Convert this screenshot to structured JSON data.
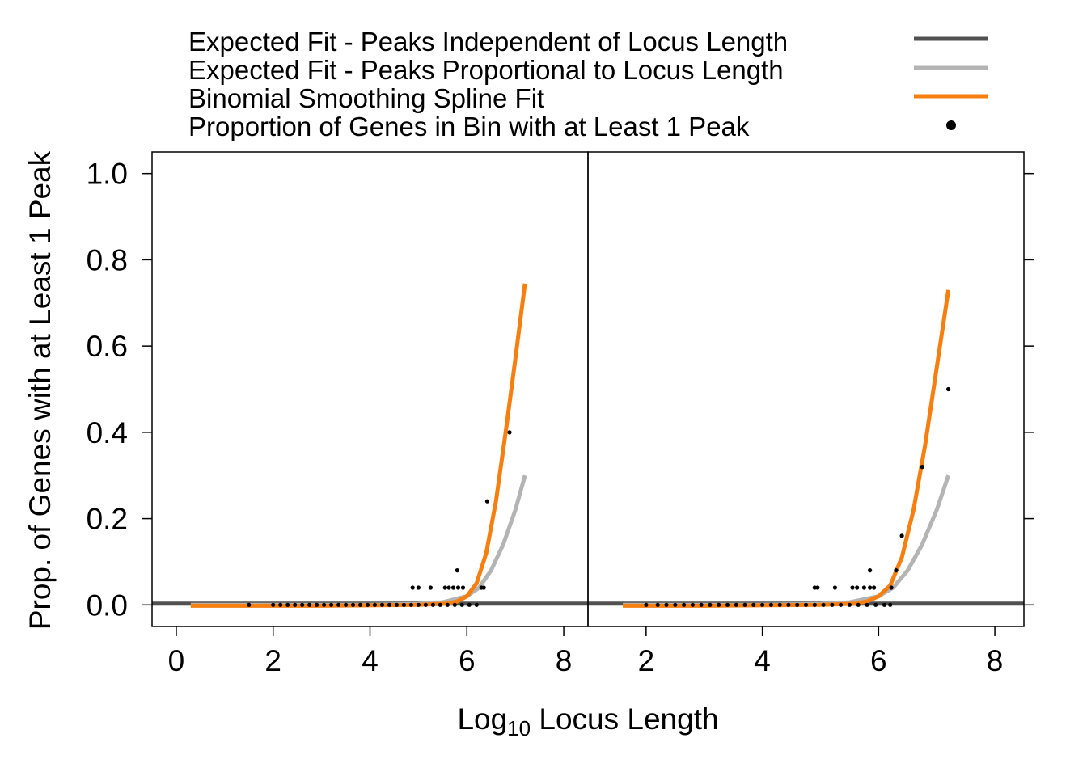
{
  "chart_data": {
    "type": "line",
    "xlabel": "Log",
    "xlabel_sub": "10",
    "xlabel_rest": " Locus Length",
    "ylabel": "Prop. of Genes with at Least 1 Peak",
    "ylim": [
      -0.05,
      1.05
    ],
    "yticks": [
      "0.0",
      "0.2",
      "0.4",
      "0.6",
      "0.8",
      "1.0"
    ],
    "legend_position": "top",
    "legend": [
      {
        "label": "Expected Fit - Peaks Independent of Locus Length",
        "color": "#505050",
        "kind": "line"
      },
      {
        "label": "Expected Fit - Peaks Proportional to Locus Length",
        "color": "#b4b4b4",
        "kind": "line"
      },
      {
        "label": "Binomial Smoothing Spline Fit",
        "color": "#f77f10",
        "kind": "line"
      },
      {
        "label": "Proportion of Genes in Bin with at Least 1 Peak",
        "color": "#000000",
        "kind": "point"
      }
    ],
    "panels": [
      {
        "xlim": [
          -0.5,
          8.5
        ],
        "xticks": [
          "0",
          "2",
          "4",
          "6",
          "8"
        ],
        "series": [
          {
            "name": "Expected Fit - Peaks Independent of Locus Length",
            "color": "#505050",
            "x": [
              -0.5,
              8.5
            ],
            "y": [
              0.003,
              0.003
            ]
          },
          {
            "name": "Expected Fit - Peaks Proportional to Locus Length",
            "color": "#b4b4b4",
            "x": [
              0.3,
              3,
              4,
              5,
              5.5,
              6,
              6.25,
              6.5,
              6.75,
              7,
              7.2
            ],
            "y": [
              0,
              0,
              0.0005,
              0.002,
              0.006,
              0.02,
              0.04,
              0.08,
              0.14,
              0.22,
              0.3
            ]
          },
          {
            "name": "Binomial Smoothing Spline Fit",
            "color": "#f77f10",
            "x": [
              0.3,
              3,
              5,
              5.6,
              5.8,
              6.0,
              6.2,
              6.4,
              6.6,
              6.8,
              7.0,
              7.2
            ],
            "y": [
              -0.002,
              -0.002,
              0,
              0.003,
              0.008,
              0.02,
              0.05,
              0.12,
              0.24,
              0.4,
              0.57,
              0.745
            ]
          }
        ],
        "points": [
          [
            1.5,
            0
          ],
          [
            2.0,
            0
          ],
          [
            2.15,
            0
          ],
          [
            2.3,
            0
          ],
          [
            2.45,
            0
          ],
          [
            2.6,
            0
          ],
          [
            2.75,
            0
          ],
          [
            2.9,
            0
          ],
          [
            3.05,
            0
          ],
          [
            3.2,
            0
          ],
          [
            3.35,
            0
          ],
          [
            3.5,
            0
          ],
          [
            3.65,
            0
          ],
          [
            3.8,
            0
          ],
          [
            3.95,
            0
          ],
          [
            4.1,
            0
          ],
          [
            4.25,
            0
          ],
          [
            4.4,
            0
          ],
          [
            4.55,
            0
          ],
          [
            4.7,
            0
          ],
          [
            4.85,
            0
          ],
          [
            5.0,
            0
          ],
          [
            5.15,
            0
          ],
          [
            5.3,
            0
          ],
          [
            5.45,
            0
          ],
          [
            5.6,
            0
          ],
          [
            5.75,
            0
          ],
          [
            5.9,
            0
          ],
          [
            6.05,
            0
          ],
          [
            6.2,
            0
          ],
          [
            4.88,
            0.04
          ],
          [
            5.0,
            0.04
          ],
          [
            5.25,
            0.04
          ],
          [
            5.55,
            0.04
          ],
          [
            5.63,
            0.04
          ],
          [
            5.72,
            0.04
          ],
          [
            5.82,
            0.04
          ],
          [
            5.92,
            0.04
          ],
          [
            6.3,
            0.04
          ],
          [
            6.35,
            0.04
          ],
          [
            5.8,
            0.08
          ],
          [
            6.42,
            0.24
          ],
          [
            6.88,
            0.4
          ]
        ]
      },
      {
        "xlim": [
          1.0,
          8.5
        ],
        "xticks": [
          "2",
          "4",
          "6",
          "8"
        ],
        "series": [
          {
            "name": "Expected Fit - Peaks Independent of Locus Length",
            "color": "#505050",
            "x": [
              1.0,
              8.5
            ],
            "y": [
              0.003,
              0.003
            ]
          },
          {
            "name": "Expected Fit - Peaks Proportional to Locus Length",
            "color": "#b4b4b4",
            "x": [
              1.6,
              3,
              4,
              5,
              5.5,
              6,
              6.25,
              6.5,
              6.75,
              7,
              7.2
            ],
            "y": [
              0,
              0,
              0.0005,
              0.002,
              0.006,
              0.02,
              0.04,
              0.08,
              0.14,
              0.22,
              0.3
            ]
          },
          {
            "name": "Binomial Smoothing Spline Fit",
            "color": "#f77f10",
            "x": [
              1.6,
              3,
              5,
              5.6,
              5.8,
              6.0,
              6.2,
              6.4,
              6.6,
              6.8,
              7.0,
              7.2
            ],
            "y": [
              -0.002,
              -0.002,
              0,
              0.003,
              0.008,
              0.02,
              0.045,
              0.11,
              0.22,
              0.37,
              0.55,
              0.73
            ]
          }
        ],
        "points": [
          [
            2.0,
            0
          ],
          [
            2.2,
            0
          ],
          [
            2.35,
            0
          ],
          [
            2.5,
            0
          ],
          [
            2.65,
            0
          ],
          [
            2.8,
            0
          ],
          [
            2.95,
            0
          ],
          [
            3.1,
            0
          ],
          [
            3.25,
            0
          ],
          [
            3.4,
            0
          ],
          [
            3.55,
            0
          ],
          [
            3.7,
            0
          ],
          [
            3.85,
            0
          ],
          [
            4.0,
            0
          ],
          [
            4.15,
            0
          ],
          [
            4.3,
            0
          ],
          [
            4.45,
            0
          ],
          [
            4.6,
            0
          ],
          [
            4.75,
            0
          ],
          [
            4.9,
            0
          ],
          [
            5.05,
            0
          ],
          [
            5.2,
            0
          ],
          [
            5.35,
            0
          ],
          [
            5.5,
            0
          ],
          [
            5.65,
            0
          ],
          [
            5.8,
            0
          ],
          [
            5.95,
            0
          ],
          [
            6.1,
            0
          ],
          [
            6.2,
            0
          ],
          [
            4.9,
            0.04
          ],
          [
            4.95,
            0.04
          ],
          [
            5.25,
            0.04
          ],
          [
            5.55,
            0.04
          ],
          [
            5.63,
            0.04
          ],
          [
            5.75,
            0.04
          ],
          [
            5.85,
            0.04
          ],
          [
            5.92,
            0.04
          ],
          [
            6.22,
            0.04
          ],
          [
            5.85,
            0.08
          ],
          [
            6.3,
            0.08
          ],
          [
            6.4,
            0.16
          ],
          [
            6.75,
            0.32
          ],
          [
            7.2,
            0.5
          ]
        ]
      }
    ]
  }
}
